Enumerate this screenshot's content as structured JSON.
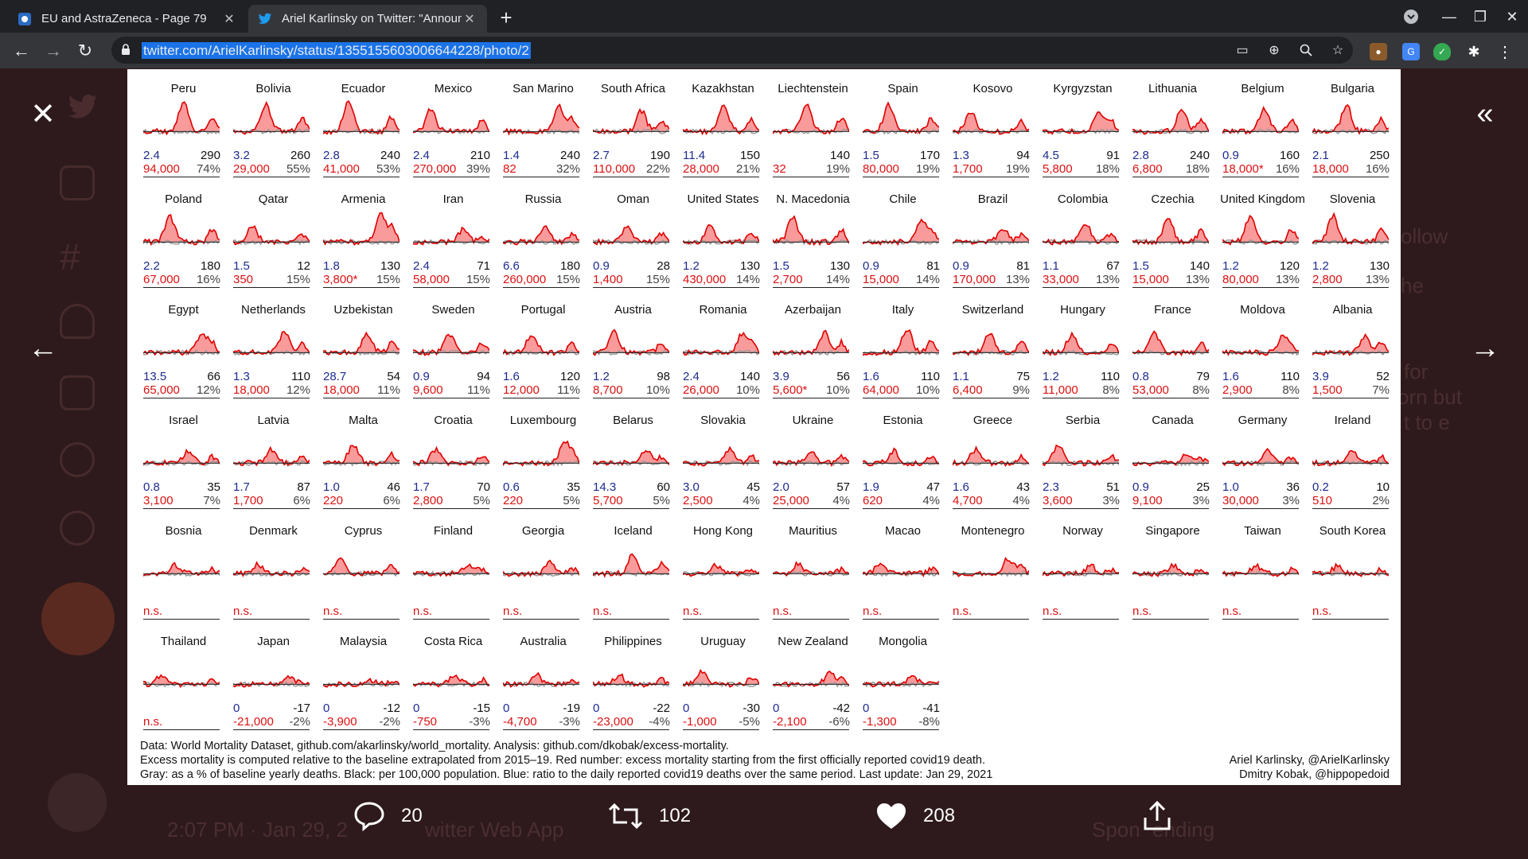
{
  "browser": {
    "tabs": [
      {
        "title": "EU and AstraZeneca - Page 79",
        "active": false
      },
      {
        "title": "Ariel Karlinsky on Twitter: \"Announ",
        "active": true
      }
    ],
    "url": "twitter.com/ArielKarlinsky/status/1355155603006644228/photo/2"
  },
  "background": {
    "follow_label": "ollow",
    "text_fragments": [
      "he",
      "for",
      "orn but",
      "t to e"
    ],
    "footer_time": "2:07 PM · Jan 29, 2",
    "footer_app": "witter Web App",
    "trending_a": "Spon",
    "trending_b": "ending"
  },
  "figure": {
    "countries": [
      {
        "name": "Peru",
        "ratio": "2.4",
        "val": "290",
        "excess": "94,000",
        "pct": "74%",
        "seed": 1,
        "peak": 0.9
      },
      {
        "name": "Bolivia",
        "ratio": "3.2",
        "val": "260",
        "excess": "29,000",
        "pct": "55%",
        "seed": 2,
        "peak": 0.85
      },
      {
        "name": "Ecuador",
        "ratio": "2.8",
        "val": "240",
        "excess": "41,000",
        "pct": "53%",
        "seed": 3,
        "peak": 0.95
      },
      {
        "name": "Mexico",
        "ratio": "2.4",
        "val": "210",
        "excess": "270,000",
        "pct": "39%",
        "seed": 4,
        "peak": 0.7
      },
      {
        "name": "San Marino",
        "ratio": "1.4",
        "val": "240",
        "excess": "82",
        "pct": "32%",
        "seed": 5,
        "peak": 0.8
      },
      {
        "name": "South Africa",
        "ratio": "2.7",
        "val": "190",
        "excess": "110,000",
        "pct": "22%",
        "seed": 6,
        "peak": 0.65
      },
      {
        "name": "Kazakhstan",
        "ratio": "11.4",
        "val": "150",
        "excess": "28,000",
        "pct": "21%",
        "seed": 7,
        "peak": 0.8
      },
      {
        "name": "Liechtenstein",
        "ratio": "",
        "val": "140",
        "excess": "32",
        "pct": "19%",
        "seed": 8,
        "peak": 0.9
      },
      {
        "name": "Spain",
        "ratio": "1.5",
        "val": "170",
        "excess": "80,000",
        "pct": "19%",
        "seed": 9,
        "peak": 0.85
      },
      {
        "name": "Kosovo",
        "ratio": "1.3",
        "val": "94",
        "excess": "1,700",
        "pct": "19%",
        "seed": 10,
        "peak": 0.6
      },
      {
        "name": "Kyrgyzstan",
        "ratio": "4.5",
        "val": "91",
        "excess": "5,800",
        "pct": "18%",
        "seed": 11,
        "peak": 0.65
      },
      {
        "name": "Lithuania",
        "ratio": "2.8",
        "val": "240",
        "excess": "6,800",
        "pct": "18%",
        "seed": 12,
        "peak": 0.7
      },
      {
        "name": "Belgium",
        "ratio": "0.9",
        "val": "160",
        "excess": "18,000*",
        "pct": "16%",
        "seed": 13,
        "peak": 0.75
      },
      {
        "name": "Bulgaria",
        "ratio": "2.1",
        "val": "250",
        "excess": "18,000",
        "pct": "16%",
        "seed": 14,
        "peak": 0.85
      },
      {
        "name": "Poland",
        "ratio": "2.2",
        "val": "180",
        "excess": "67,000",
        "pct": "16%",
        "seed": 15,
        "peak": 0.8
      },
      {
        "name": "Qatar",
        "ratio": "1.5",
        "val": "12",
        "excess": "350",
        "pct": "15%",
        "seed": 16,
        "peak": 0.5
      },
      {
        "name": "Armenia",
        "ratio": "1.8",
        "val": "130",
        "excess": "3,800*",
        "pct": "15%",
        "seed": 17,
        "peak": 0.9
      },
      {
        "name": "Iran",
        "ratio": "2.4",
        "val": "71",
        "excess": "58,000",
        "pct": "15%",
        "seed": 18,
        "peak": 0.4
      },
      {
        "name": "Russia",
        "ratio": "6.6",
        "val": "180",
        "excess": "260,000",
        "pct": "15%",
        "seed": 19,
        "peak": 0.5
      },
      {
        "name": "Oman",
        "ratio": "0.9",
        "val": "28",
        "excess": "1,400",
        "pct": "15%",
        "seed": 20,
        "peak": 0.5
      },
      {
        "name": "United States",
        "ratio": "1.2",
        "val": "130",
        "excess": "430,000",
        "pct": "14%",
        "seed": 21,
        "peak": 0.5
      },
      {
        "name": "N. Macedonia",
        "ratio": "1.5",
        "val": "130",
        "excess": "2,700",
        "pct": "14%",
        "seed": 22,
        "peak": 0.8
      },
      {
        "name": "Chile",
        "ratio": "0.9",
        "val": "81",
        "excess": "15,000",
        "pct": "14%",
        "seed": 23,
        "peak": 0.7
      },
      {
        "name": "Brazil",
        "ratio": "0.9",
        "val": "81",
        "excess": "170,000",
        "pct": "13%",
        "seed": 24,
        "peak": 0.45
      },
      {
        "name": "Colombia",
        "ratio": "1.1",
        "val": "67",
        "excess": "33,000",
        "pct": "13%",
        "seed": 25,
        "peak": 0.6
      },
      {
        "name": "Czechia",
        "ratio": "1.5",
        "val": "140",
        "excess": "15,000",
        "pct": "13%",
        "seed": 26,
        "peak": 0.75
      },
      {
        "name": "United Kingdom",
        "ratio": "1.2",
        "val": "120",
        "excess": "80,000",
        "pct": "13%",
        "seed": 27,
        "peak": 0.85
      },
      {
        "name": "Slovenia",
        "ratio": "1.2",
        "val": "130",
        "excess": "2,800",
        "pct": "13%",
        "seed": 28,
        "peak": 0.85
      },
      {
        "name": "Egypt",
        "ratio": "13.5",
        "val": "66",
        "excess": "65,000",
        "pct": "12%",
        "seed": 29,
        "peak": 0.6
      },
      {
        "name": "Netherlands",
        "ratio": "1.3",
        "val": "110",
        "excess": "18,000",
        "pct": "12%",
        "seed": 30,
        "peak": 0.7
      },
      {
        "name": "Uzbekistan",
        "ratio": "28.7",
        "val": "54",
        "excess": "18,000",
        "pct": "11%",
        "seed": 31,
        "peak": 0.6
      },
      {
        "name": "Sweden",
        "ratio": "0.9",
        "val": "94",
        "excess": "9,600",
        "pct": "11%",
        "seed": 32,
        "peak": 0.6
      },
      {
        "name": "Portugal",
        "ratio": "1.6",
        "val": "120",
        "excess": "12,000",
        "pct": "11%",
        "seed": 33,
        "peak": 0.6
      },
      {
        "name": "Austria",
        "ratio": "1.2",
        "val": "98",
        "excess": "8,700",
        "pct": "10%",
        "seed": 34,
        "peak": 0.65
      },
      {
        "name": "Romania",
        "ratio": "2.4",
        "val": "140",
        "excess": "26,000",
        "pct": "10%",
        "seed": 35,
        "peak": 0.6
      },
      {
        "name": "Azerbaijan",
        "ratio": "3.9",
        "val": "56",
        "excess": "5,600*",
        "pct": "10%",
        "seed": 36,
        "peak": 0.65
      },
      {
        "name": "Italy",
        "ratio": "1.6",
        "val": "110",
        "excess": "64,000",
        "pct": "10%",
        "seed": 37,
        "peak": 0.75
      },
      {
        "name": "Switzerland",
        "ratio": "1.1",
        "val": "75",
        "excess": "6,400",
        "pct": "9%",
        "seed": 38,
        "peak": 0.6
      },
      {
        "name": "Hungary",
        "ratio": "1.2",
        "val": "110",
        "excess": "11,000",
        "pct": "8%",
        "seed": 39,
        "peak": 0.6
      },
      {
        "name": "France",
        "ratio": "0.8",
        "val": "79",
        "excess": "53,000",
        "pct": "8%",
        "seed": 40,
        "peak": 0.6
      },
      {
        "name": "Moldova",
        "ratio": "1.6",
        "val": "110",
        "excess": "2,900",
        "pct": "8%",
        "seed": 41,
        "peak": 0.5
      },
      {
        "name": "Albania",
        "ratio": "3.9",
        "val": "52",
        "excess": "1,500",
        "pct": "7%",
        "seed": 42,
        "peak": 0.55
      },
      {
        "name": "Israel",
        "ratio": "0.8",
        "val": "35",
        "excess": "3,100",
        "pct": "7%",
        "seed": 43,
        "peak": 0.4
      },
      {
        "name": "Latvia",
        "ratio": "1.7",
        "val": "87",
        "excess": "1,700",
        "pct": "6%",
        "seed": 44,
        "peak": 0.45
      },
      {
        "name": "Malta",
        "ratio": "1.0",
        "val": "46",
        "excess": "220",
        "pct": "6%",
        "seed": 45,
        "peak": 0.6
      },
      {
        "name": "Croatia",
        "ratio": "1.7",
        "val": "70",
        "excess": "2,800",
        "pct": "5%",
        "seed": 46,
        "peak": 0.45
      },
      {
        "name": "Luxembourg",
        "ratio": "0.6",
        "val": "35",
        "excess": "220",
        "pct": "5%",
        "seed": 47,
        "peak": 0.6
      },
      {
        "name": "Belarus",
        "ratio": "14.3",
        "val": "60",
        "excess": "5,700",
        "pct": "5%",
        "seed": 48,
        "peak": 0.4
      },
      {
        "name": "Slovakia",
        "ratio": "3.0",
        "val": "45",
        "excess": "2,500",
        "pct": "4%",
        "seed": 49,
        "peak": 0.45
      },
      {
        "name": "Ukraine",
        "ratio": "2.0",
        "val": "57",
        "excess": "25,000",
        "pct": "4%",
        "seed": 50,
        "peak": 0.4
      },
      {
        "name": "Estonia",
        "ratio": "1.9",
        "val": "47",
        "excess": "620",
        "pct": "4%",
        "seed": 51,
        "peak": 0.4
      },
      {
        "name": "Greece",
        "ratio": "1.6",
        "val": "43",
        "excess": "4,700",
        "pct": "4%",
        "seed": 52,
        "peak": 0.45
      },
      {
        "name": "Serbia",
        "ratio": "2.3",
        "val": "51",
        "excess": "3,600",
        "pct": "3%",
        "seed": 53,
        "peak": 0.55
      },
      {
        "name": "Canada",
        "ratio": "0.9",
        "val": "25",
        "excess": "9,100",
        "pct": "3%",
        "seed": 54,
        "peak": 0.3
      },
      {
        "name": "Germany",
        "ratio": "1.0",
        "val": "36",
        "excess": "30,000",
        "pct": "3%",
        "seed": 55,
        "peak": 0.4
      },
      {
        "name": "Ireland",
        "ratio": "0.2",
        "val": "10",
        "excess": "510",
        "pct": "2%",
        "seed": 56,
        "peak": 0.4
      },
      {
        "name": "Bosnia",
        "ratio": "",
        "val": "",
        "excess": "n.s.",
        "pct": "",
        "seed": 57,
        "peak": 0.3
      },
      {
        "name": "Denmark",
        "ratio": "",
        "val": "",
        "excess": "n.s.",
        "pct": "",
        "seed": 58,
        "peak": 0.3
      },
      {
        "name": "Cyprus",
        "ratio": "",
        "val": "",
        "excess": "n.s.",
        "pct": "",
        "seed": 59,
        "peak": 0.5
      },
      {
        "name": "Finland",
        "ratio": "",
        "val": "",
        "excess": "n.s.",
        "pct": "",
        "seed": 60,
        "peak": 0.3
      },
      {
        "name": "Georgia",
        "ratio": "",
        "val": "",
        "excess": "n.s.",
        "pct": "",
        "seed": 61,
        "peak": 0.35
      },
      {
        "name": "Iceland",
        "ratio": "",
        "val": "",
        "excess": "n.s.",
        "pct": "",
        "seed": 62,
        "peak": 0.6
      },
      {
        "name": "Hong Kong",
        "ratio": "",
        "val": "",
        "excess": "n.s.",
        "pct": "",
        "seed": 63,
        "peak": 0.3
      },
      {
        "name": "Mauritius",
        "ratio": "",
        "val": "",
        "excess": "n.s.",
        "pct": "",
        "seed": 64,
        "peak": 0.3
      },
      {
        "name": "Macao",
        "ratio": "",
        "val": "",
        "excess": "n.s.",
        "pct": "",
        "seed": 65,
        "peak": 0.3
      },
      {
        "name": "Montenegro",
        "ratio": "",
        "val": "",
        "excess": "n.s.",
        "pct": "",
        "seed": 66,
        "peak": 0.5
      },
      {
        "name": "Norway",
        "ratio": "",
        "val": "",
        "excess": "n.s.",
        "pct": "",
        "seed": 67,
        "peak": 0.25
      },
      {
        "name": "Singapore",
        "ratio": "",
        "val": "",
        "excess": "n.s.",
        "pct": "",
        "seed": 68,
        "peak": 0.25
      },
      {
        "name": "Taiwan",
        "ratio": "",
        "val": "",
        "excess": "n.s.",
        "pct": "",
        "seed": 69,
        "peak": 0.25
      },
      {
        "name": "South Korea",
        "ratio": "",
        "val": "",
        "excess": "n.s.",
        "pct": "",
        "seed": 70,
        "peak": 0.25
      },
      {
        "name": "Thailand",
        "ratio": "",
        "val": "",
        "excess": "n.s.",
        "pct": "",
        "seed": 71,
        "peak": 0.25
      },
      {
        "name": "Japan",
        "ratio": "0",
        "val": "-17",
        "excess": "-21,000",
        "pct": "-2%",
        "seed": 72,
        "peak": 0.2
      },
      {
        "name": "Malaysia",
        "ratio": "0",
        "val": "-12",
        "excess": "-3,900",
        "pct": "-2%",
        "seed": 73,
        "peak": 0.1
      },
      {
        "name": "Costa Rica",
        "ratio": "0",
        "val": "-15",
        "excess": "-750",
        "pct": "-3%",
        "seed": 74,
        "peak": 0.3
      },
      {
        "name": "Australia",
        "ratio": "0",
        "val": "-19",
        "excess": "-4,700",
        "pct": "-3%",
        "seed": 75,
        "peak": 0.3
      },
      {
        "name": "Philippines",
        "ratio": "0",
        "val": "-22",
        "excess": "-23,000",
        "pct": "-4%",
        "seed": 76,
        "peak": 0.3
      },
      {
        "name": "Uruguay",
        "ratio": "0",
        "val": "-30",
        "excess": "-1,000",
        "pct": "-5%",
        "seed": 77,
        "peak": 0.4
      },
      {
        "name": "New Zealand",
        "ratio": "0",
        "val": "-42",
        "excess": "-2,100",
        "pct": "-6%",
        "seed": 78,
        "peak": 0.35
      },
      {
        "name": "Mongolia",
        "ratio": "0",
        "val": "-41",
        "excess": "-1,300",
        "pct": "-8%",
        "seed": 79,
        "peak": 0.25
      }
    ],
    "footer_lines": [
      "Data: World Mortality Dataset, github.com/akarlinsky/world_mortality. Analysis: github.com/dkobak/excess-mortality.",
      "Excess mortality is computed relative to the baseline extrapolated from 2015–19. Red number: excess mortality starting from the first officially reported covid19 death.",
      "Gray: as a % of baseline yearly deaths. Black: per 100,000 population. Blue: ratio to the daily reported covid19 deaths over the same period. Last update: Jan 29, 2021"
    ],
    "credits": [
      "Ariel Karlinsky, @ArielKarlinsky",
      "Dmitry Kobak, @hippopedoid"
    ]
  },
  "actions": {
    "replies": "20",
    "retweets": "102",
    "likes": "208"
  },
  "colors": {
    "excess_fill": "#f88a8a",
    "excess_line": "#e00000",
    "baseline": "#9a9a9a"
  }
}
